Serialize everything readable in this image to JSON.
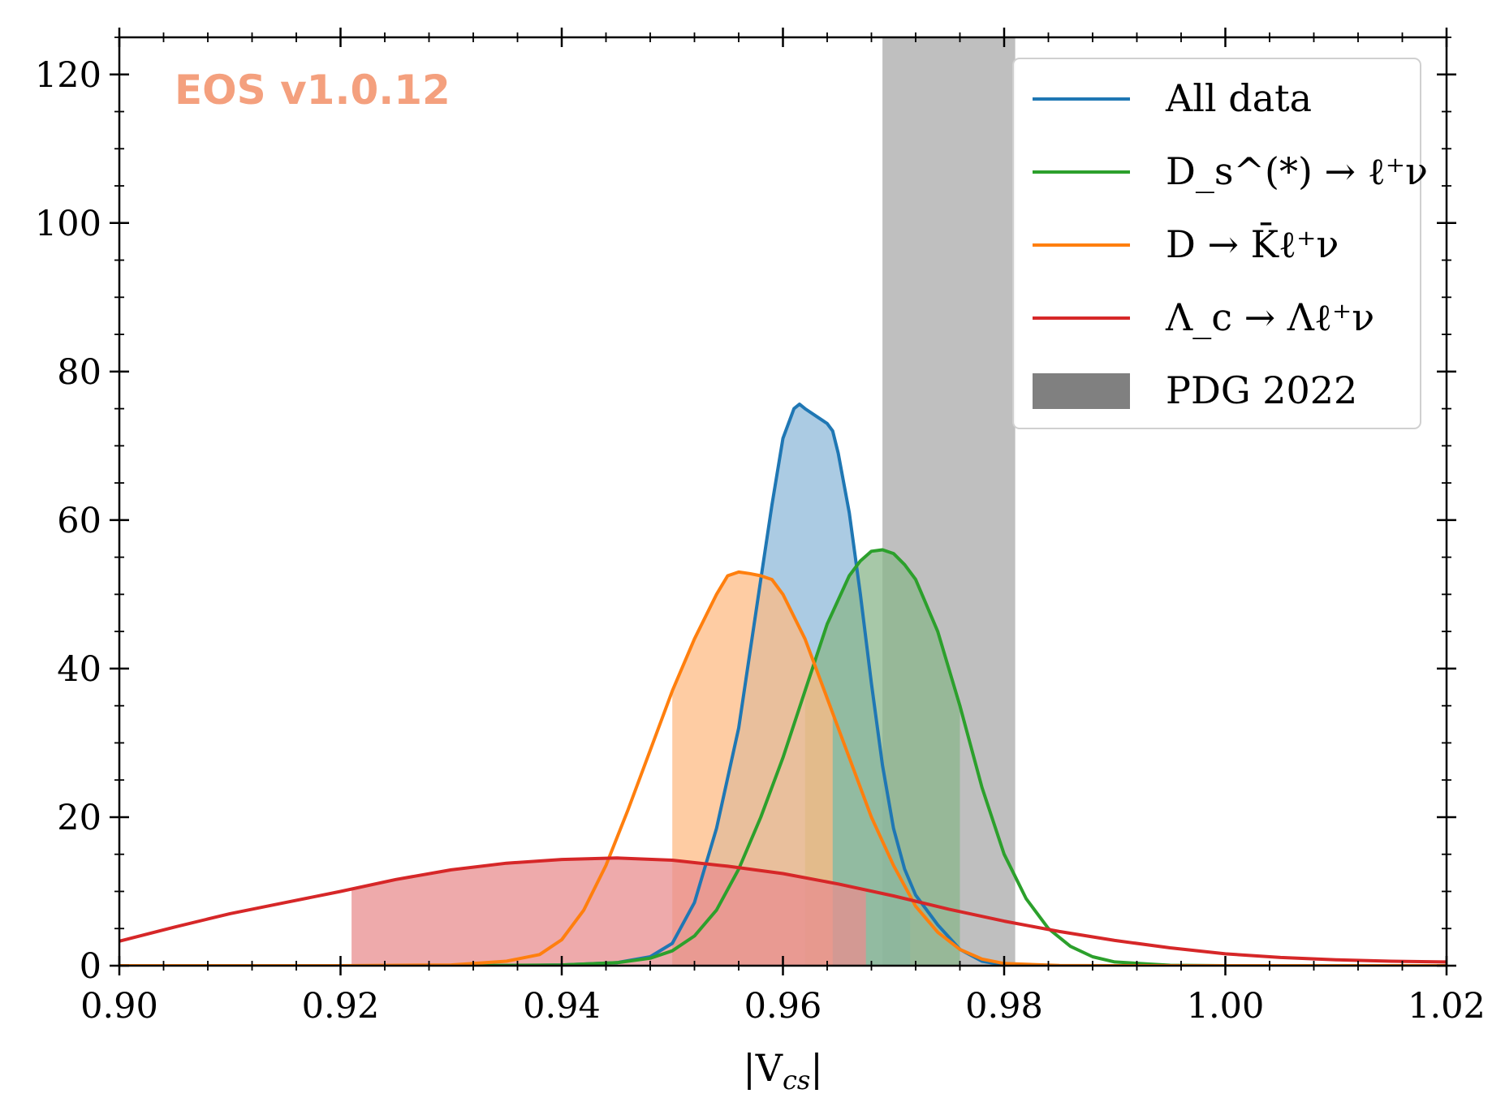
{
  "chart_data": {
    "type": "area",
    "xlabel": "|V_cs|",
    "ylabel": "",
    "xlim": [
      0.9,
      1.02
    ],
    "ylim": [
      0,
      125
    ],
    "xticks": [
      0.9,
      0.92,
      0.94,
      0.96,
      0.98,
      1.0,
      1.02
    ],
    "xtick_labels": [
      "0.90",
      "0.92",
      "0.94",
      "0.96",
      "0.98",
      "1.00",
      "1.02"
    ],
    "yticks": [
      0,
      20,
      40,
      60,
      80,
      100,
      120
    ],
    "ytick_labels": [
      "0",
      "20",
      "40",
      "60",
      "80",
      "100",
      "120"
    ],
    "watermark": {
      "text": "EOS v1.0.12",
      "color": "#f4a07e"
    },
    "legend_position": "top-right",
    "band": {
      "name": "PDG 2022",
      "x_range": [
        0.969,
        0.981
      ],
      "color": "#bfbfbf",
      "legend_color": "#808080"
    },
    "series": [
      {
        "name": "All data",
        "color": "#1f77b4",
        "fill_color": "#8fb9d9",
        "hpd": [
          0.95,
          0.9715
        ],
        "x": [
          0.935,
          0.94,
          0.945,
          0.948,
          0.95,
          0.952,
          0.954,
          0.956,
          0.957,
          0.958,
          0.959,
          0.96,
          0.961,
          0.9615,
          0.962,
          0.963,
          0.964,
          0.9645,
          0.965,
          0.966,
          0.967,
          0.968,
          0.969,
          0.97,
          0.971,
          0.972,
          0.974,
          0.976,
          0.978,
          0.98,
          0.985,
          0.99
        ],
        "y": [
          0.0,
          0.1,
          0.4,
          1.2,
          3.0,
          8.5,
          18.5,
          32.0,
          42.0,
          52.0,
          62.0,
          71.0,
          75.0,
          75.6,
          75.0,
          74.0,
          73.0,
          72.0,
          69.0,
          61.0,
          50.0,
          38.0,
          27.0,
          18.5,
          13.0,
          9.5,
          5.5,
          2.2,
          0.6,
          0.1,
          0.0,
          0.0
        ]
      },
      {
        "name": "D_s^(*) → ℓ⁺ν",
        "color": "#2ca02c",
        "fill_color": "#8ab68b",
        "hpd": [
          0.962,
          0.976
        ],
        "x": [
          0.93,
          0.94,
          0.945,
          0.948,
          0.95,
          0.952,
          0.954,
          0.956,
          0.958,
          0.96,
          0.962,
          0.964,
          0.966,
          0.967,
          0.968,
          0.969,
          0.97,
          0.971,
          0.972,
          0.974,
          0.976,
          0.978,
          0.98,
          0.982,
          0.984,
          0.986,
          0.988,
          0.99,
          0.995,
          1.0
        ],
        "y": [
          0.0,
          0.1,
          0.4,
          1.0,
          2.0,
          4.0,
          7.5,
          13.0,
          20.0,
          28.0,
          37.0,
          46.0,
          52.5,
          54.5,
          55.8,
          56.0,
          55.5,
          54.0,
          52.0,
          45.0,
          35.0,
          24.0,
          15.0,
          9.0,
          5.0,
          2.6,
          1.2,
          0.5,
          0.05,
          0.0
        ]
      },
      {
        "name": "D → K̄ℓ⁺ν",
        "color": "#ff7f0e",
        "fill_color": "#fdbb84",
        "hpd": [
          0.95,
          0.9645
        ],
        "x": [
          0.92,
          0.93,
          0.935,
          0.938,
          0.94,
          0.942,
          0.944,
          0.946,
          0.948,
          0.95,
          0.952,
          0.954,
          0.955,
          0.956,
          0.957,
          0.958,
          0.959,
          0.96,
          0.962,
          0.964,
          0.966,
          0.968,
          0.97,
          0.972,
          0.974,
          0.976,
          0.978,
          0.98,
          0.985,
          0.99
        ],
        "y": [
          0.0,
          0.1,
          0.6,
          1.5,
          3.5,
          7.5,
          13.5,
          21.0,
          29.0,
          37.0,
          44.0,
          50.0,
          52.5,
          53.0,
          52.8,
          52.5,
          52.0,
          50.0,
          44.0,
          36.0,
          28.0,
          20.0,
          13.5,
          8.0,
          4.5,
          2.2,
          0.9,
          0.3,
          0.02,
          0.0
        ]
      },
      {
        "name": "Λ_c → Λℓ⁺ν",
        "color": "#d62728",
        "fill_color": "#e88e8f",
        "hpd": [
          0.921,
          0.9675
        ],
        "x": [
          0.9,
          0.905,
          0.91,
          0.915,
          0.92,
          0.925,
          0.93,
          0.935,
          0.94,
          0.945,
          0.95,
          0.955,
          0.96,
          0.965,
          0.97,
          0.975,
          0.98,
          0.985,
          0.99,
          0.995,
          1.0,
          1.005,
          1.01,
          1.015,
          1.02
        ],
        "y": [
          3.3,
          5.2,
          7.0,
          8.5,
          10.0,
          11.6,
          12.9,
          13.8,
          14.3,
          14.5,
          14.2,
          13.4,
          12.4,
          11.0,
          9.4,
          7.6,
          6.0,
          4.6,
          3.4,
          2.4,
          1.6,
          1.1,
          0.8,
          0.6,
          0.5
        ]
      }
    ]
  }
}
